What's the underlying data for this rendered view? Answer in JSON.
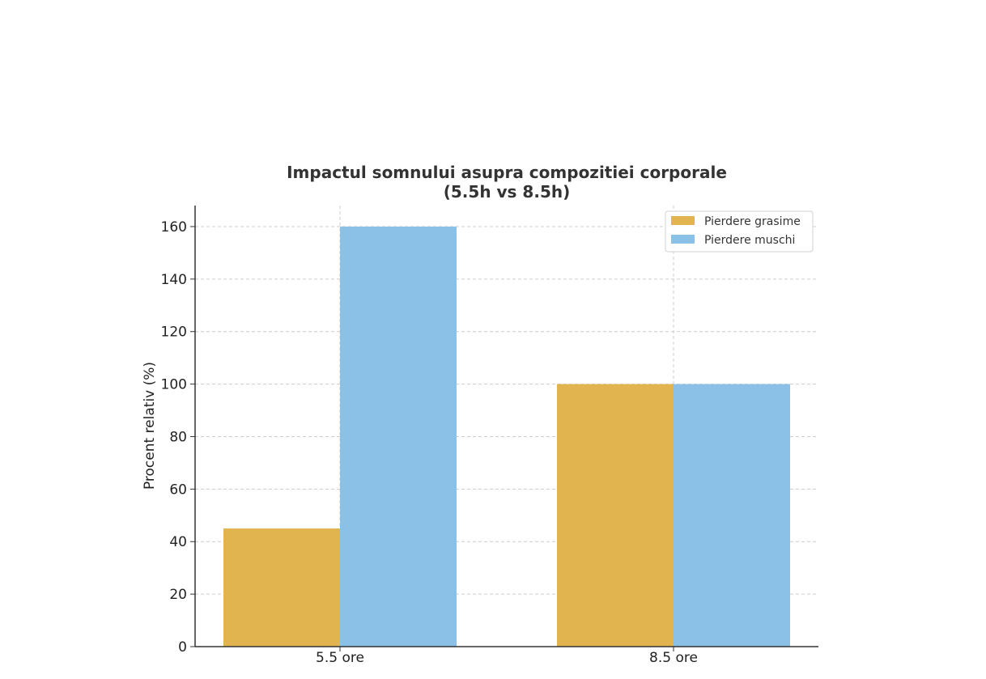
{
  "chart_data": {
    "type": "bar",
    "title": "Impactul somnului asupra compozitiei corporale",
    "subtitle": "(5.5h vs 8.5h)",
    "xlabel": "",
    "ylabel": "Procent relativ (%)",
    "categories": [
      "5.5 ore",
      "8.5 ore"
    ],
    "series": [
      {
        "name": "Pierdere grasime",
        "values": [
          45,
          100
        ],
        "color": "#E1B44F"
      },
      {
        "name": "Pierdere muschi",
        "values": [
          160,
          100
        ],
        "color": "#8BC0E7"
      }
    ],
    "ylim": [
      0,
      168
    ],
    "yticks": [
      0,
      20,
      40,
      60,
      80,
      100,
      120,
      140,
      160
    ],
    "grid": true,
    "legend_position": "top-right"
  }
}
